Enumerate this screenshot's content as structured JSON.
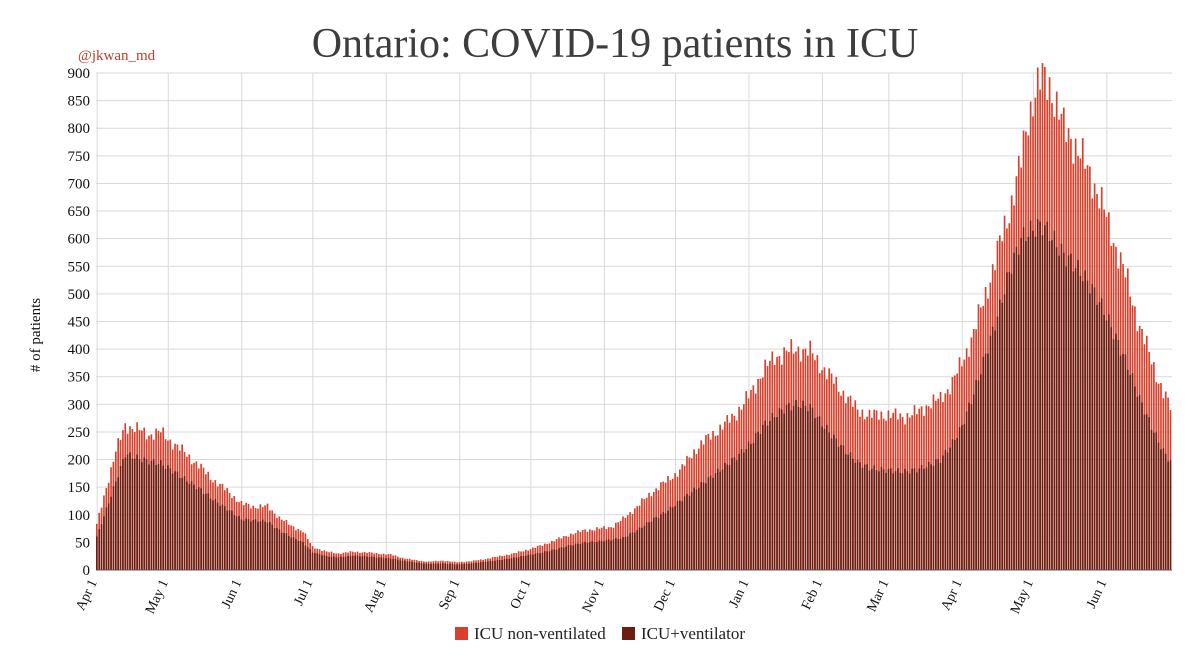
{
  "author": "@jkwan_md",
  "chart_data": {
    "type": "bar",
    "stacked": true,
    "title": "Ontario: COVID-19 patients in ICU",
    "xlabel": "",
    "ylabel": "# of patients",
    "ylim": [
      0,
      900
    ],
    "ytick_step": 50,
    "grid": true,
    "legend_position": "bottom-center",
    "x_tick_labels": [
      "Apr 1",
      "May 1",
      "Jun 1",
      "Jul 1",
      "Aug 1",
      "Sep 1",
      "Oct 1",
      "Nov 1",
      "Dec 1",
      "Jan 1",
      "Feb 1",
      "Mar 1",
      "Apr 1",
      "May 1",
      "Jun 1"
    ],
    "x_tick_days": [
      0,
      30,
      61,
      91,
      122,
      153,
      183,
      214,
      244,
      275,
      306,
      334,
      365,
      395,
      426
    ],
    "num_days": 454,
    "series": [
      {
        "name": "ICU non-ventilated",
        "color": "#d9402c",
        "total_anchors": [
          [
            0,
            82
          ],
          [
            4,
            150
          ],
          [
            8,
            215
          ],
          [
            12,
            262
          ],
          [
            17,
            255
          ],
          [
            22,
            245
          ],
          [
            27,
            250
          ],
          [
            32,
            230
          ],
          [
            37,
            213
          ],
          [
            44,
            185
          ],
          [
            50,
            160
          ],
          [
            56,
            140
          ],
          [
            61,
            120
          ],
          [
            66,
            115
          ],
          [
            72,
            115
          ],
          [
            77,
            95
          ],
          [
            82,
            80
          ],
          [
            87,
            70
          ],
          [
            91,
            42
          ],
          [
            97,
            33
          ],
          [
            102,
            30
          ],
          [
            108,
            33
          ],
          [
            113,
            32
          ],
          [
            118,
            30
          ],
          [
            124,
            28
          ],
          [
            129,
            22
          ],
          [
            134,
            18
          ],
          [
            140,
            15
          ],
          [
            146,
            17
          ],
          [
            152,
            14
          ],
          [
            158,
            16
          ],
          [
            164,
            20
          ],
          [
            170,
            25
          ],
          [
            176,
            30
          ],
          [
            182,
            37
          ],
          [
            188,
            45
          ],
          [
            194,
            55
          ],
          [
            200,
            65
          ],
          [
            206,
            72
          ],
          [
            212,
            75
          ],
          [
            217,
            78
          ],
          [
            222,
            92
          ],
          [
            228,
            115
          ],
          [
            234,
            140
          ],
          [
            240,
            160
          ],
          [
            246,
            180
          ],
          [
            252,
            215
          ],
          [
            258,
            240
          ],
          [
            264,
            260
          ],
          [
            270,
            285
          ],
          [
            276,
            320
          ],
          [
            281,
            360
          ],
          [
            286,
            385
          ],
          [
            291,
            395
          ],
          [
            296,
            400
          ],
          [
            301,
            395
          ],
          [
            306,
            368
          ],
          [
            311,
            342
          ],
          [
            316,
            315
          ],
          [
            321,
            290
          ],
          [
            326,
            280
          ],
          [
            331,
            282
          ],
          [
            336,
            280
          ],
          [
            341,
            278
          ],
          [
            346,
            285
          ],
          [
            351,
            300
          ],
          [
            356,
            310
          ],
          [
            361,
            340
          ],
          [
            365,
            375
          ],
          [
            370,
            430
          ],
          [
            375,
            500
          ],
          [
            380,
            575
          ],
          [
            385,
            650
          ],
          [
            390,
            740
          ],
          [
            393,
            820
          ],
          [
            396,
            868
          ],
          [
            399,
            890
          ],
          [
            402,
            880
          ],
          [
            405,
            840
          ],
          [
            408,
            800
          ],
          [
            411,
            785
          ],
          [
            415,
            750
          ],
          [
            420,
            710
          ],
          [
            425,
            650
          ],
          [
            430,
            585
          ],
          [
            435,
            520
          ],
          [
            440,
            440
          ],
          [
            445,
            380
          ],
          [
            450,
            320
          ],
          [
            454,
            287
          ]
        ]
      },
      {
        "name": "ICU+ventilator",
        "color": "#6b1f12",
        "value_anchors": [
          [
            0,
            60
          ],
          [
            4,
            110
          ],
          [
            8,
            160
          ],
          [
            12,
            210
          ],
          [
            17,
            203
          ],
          [
            22,
            197
          ],
          [
            27,
            193
          ],
          [
            32,
            180
          ],
          [
            37,
            165
          ],
          [
            44,
            145
          ],
          [
            50,
            125
          ],
          [
            56,
            108
          ],
          [
            61,
            92
          ],
          [
            66,
            90
          ],
          [
            72,
            88
          ],
          [
            77,
            72
          ],
          [
            82,
            60
          ],
          [
            87,
            50
          ],
          [
            91,
            32
          ],
          [
            97,
            25
          ],
          [
            102,
            23
          ],
          [
            108,
            26
          ],
          [
            113,
            25
          ],
          [
            118,
            23
          ],
          [
            124,
            21
          ],
          [
            129,
            17
          ],
          [
            134,
            14
          ],
          [
            140,
            11
          ],
          [
            146,
            12
          ],
          [
            152,
            10
          ],
          [
            158,
            12
          ],
          [
            164,
            15
          ],
          [
            170,
            18
          ],
          [
            176,
            22
          ],
          [
            182,
            27
          ],
          [
            188,
            32
          ],
          [
            194,
            38
          ],
          [
            200,
            45
          ],
          [
            206,
            50
          ],
          [
            212,
            52
          ],
          [
            217,
            55
          ],
          [
            222,
            58
          ],
          [
            228,
            72
          ],
          [
            234,
            90
          ],
          [
            240,
            105
          ],
          [
            246,
            125
          ],
          [
            252,
            145
          ],
          [
            258,
            165
          ],
          [
            264,
            185
          ],
          [
            270,
            205
          ],
          [
            276,
            230
          ],
          [
            281,
            260
          ],
          [
            286,
            280
          ],
          [
            291,
            295
          ],
          [
            296,
            300
          ],
          [
            301,
            295
          ],
          [
            306,
            265
          ],
          [
            311,
            240
          ],
          [
            316,
            215
          ],
          [
            321,
            195
          ],
          [
            326,
            185
          ],
          [
            331,
            182
          ],
          [
            336,
            180
          ],
          [
            341,
            178
          ],
          [
            346,
            182
          ],
          [
            351,
            190
          ],
          [
            356,
            200
          ],
          [
            361,
            230
          ],
          [
            365,
            260
          ],
          [
            370,
            320
          ],
          [
            375,
            390
          ],
          [
            380,
            460
          ],
          [
            385,
            540
          ],
          [
            390,
            600
          ],
          [
            393,
            612
          ],
          [
            396,
            620
          ],
          [
            399,
            625
          ],
          [
            402,
            610
          ],
          [
            405,
            590
          ],
          [
            408,
            570
          ],
          [
            411,
            560
          ],
          [
            415,
            540
          ],
          [
            420,
            510
          ],
          [
            425,
            470
          ],
          [
            430,
            420
          ],
          [
            435,
            370
          ],
          [
            440,
            310
          ],
          [
            445,
            260
          ],
          [
            450,
            215
          ],
          [
            454,
            190
          ]
        ]
      }
    ]
  }
}
